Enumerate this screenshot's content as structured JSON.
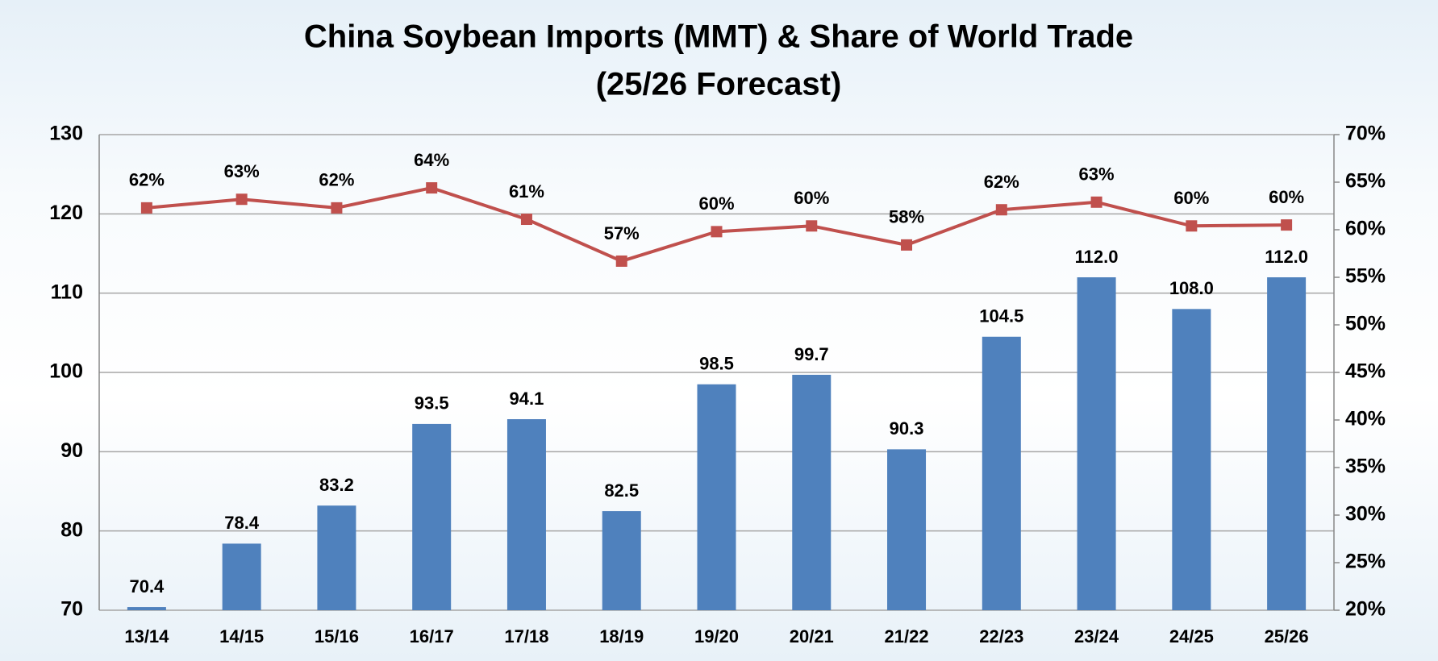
{
  "chart_data": {
    "type": "bar_line",
    "title": "China Soybean Imports (MMT) & Share of World Trade",
    "subtitle": "(25/26 Forecast)",
    "categories": [
      "13/14",
      "14/15",
      "15/16",
      "16/17",
      "17/18",
      "18/19",
      "19/20",
      "20/21",
      "21/22",
      "22/23",
      "23/24",
      "24/25",
      "25/26"
    ],
    "series": [
      {
        "type": "bar",
        "color": "#4f81bd",
        "values": [
          70.4,
          78.4,
          83.2,
          93.5,
          94.1,
          82.5,
          98.5,
          99.7,
          90.3,
          104.5,
          112,
          108,
          112
        ],
        "value_labels": [
          "70.4",
          "78.4",
          "83.2",
          "93.5",
          "94.1",
          "82.5",
          "98.5",
          "99.7",
          "90.3",
          "104.5",
          "112.0",
          "108.0",
          "112.0"
        ]
      },
      {
        "type": "line",
        "axis": "y2",
        "color": "#c0504d",
        "values": [
          62.3,
          63.2,
          62.3,
          64.4,
          61.1,
          56.7,
          59.8,
          60.4,
          58.4,
          62.1,
          62.9,
          60.4,
          60.5
        ],
        "value_labels": [
          "62%",
          "63%",
          "62%",
          "64%",
          "61%",
          "57%",
          "60%",
          "60%",
          "58%",
          "62%",
          "63%",
          "60%",
          "60%"
        ]
      }
    ],
    "ylim": [
      70,
      130
    ],
    "yticks": [
      70,
      80,
      90,
      100,
      110,
      120,
      130
    ],
    "y2lim": [
      20,
      70
    ],
    "y2ticks": [
      {
        "value": 20,
        "label": "20%"
      },
      {
        "value": 25,
        "label": "25%"
      },
      {
        "value": 30,
        "label": "30%"
      },
      {
        "value": 35,
        "label": "35%"
      },
      {
        "value": 40,
        "label": "40%"
      },
      {
        "value": 45,
        "label": "45%"
      },
      {
        "value": 50,
        "label": "50%"
      },
      {
        "value": 55,
        "label": "55%"
      },
      {
        "value": 60,
        "label": "60%"
      },
      {
        "value": 65,
        "label": "65%"
      },
      {
        "value": 70,
        "label": "70%"
      }
    ],
    "grid": true
  }
}
